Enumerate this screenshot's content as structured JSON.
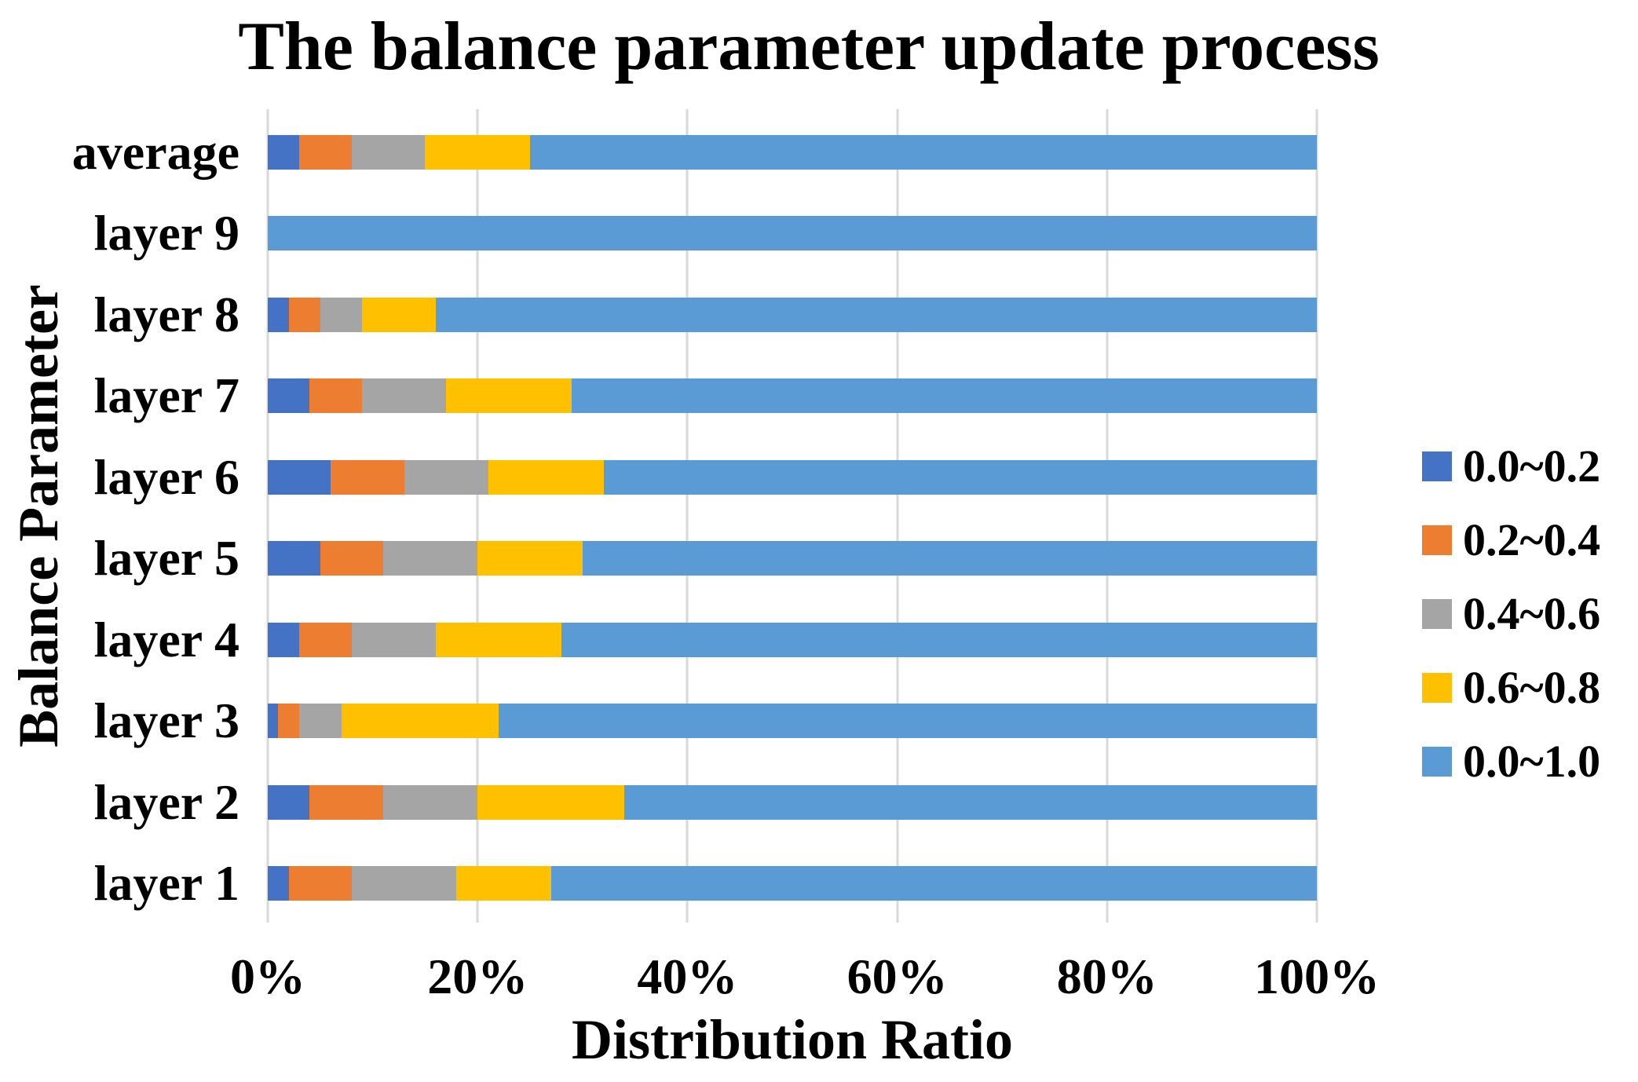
{
  "chart_data": {
    "type": "bar",
    "orientation": "horizontal-stacked",
    "title": "The balance parameter update process",
    "xlabel": "Distribution Ratio",
    "ylabel": "Balance Parameter",
    "x_ticks": [
      "0%",
      "20%",
      "40%",
      "60%",
      "80%",
      "100%"
    ],
    "xlim_percent": [
      0,
      100
    ],
    "grid": true,
    "gridline_color": "#D9D9D9",
    "legend_position": "right",
    "units": "percent of distribution",
    "categories_top_to_bottom": [
      "average",
      "layer 9",
      "layer 8",
      "layer 7",
      "layer 6",
      "layer 5",
      "layer 4",
      "layer 3",
      "layer 2",
      "layer 1"
    ],
    "series": [
      {
        "name": "0.0~0.2",
        "color": "#4472C4",
        "values": [
          3,
          0,
          2,
          4,
          6,
          5,
          3,
          1,
          4,
          2
        ]
      },
      {
        "name": "0.2~0.4",
        "color": "#ED7D31",
        "values": [
          5,
          0,
          3,
          5,
          7,
          6,
          5,
          2,
          7,
          6
        ]
      },
      {
        "name": "0.4~0.6",
        "color": "#A5A5A5",
        "values": [
          7,
          0,
          4,
          8,
          8,
          9,
          8,
          4,
          9,
          10
        ]
      },
      {
        "name": "0.6~0.8",
        "color": "#FFC000",
        "values": [
          10,
          0,
          7,
          12,
          11,
          10,
          12,
          15,
          14,
          9
        ]
      },
      {
        "name": "0.0~1.0",
        "color": "#5B9BD5",
        "values": [
          75,
          100,
          84,
          71,
          68,
          70,
          72,
          78,
          66,
          73
        ]
      }
    ]
  }
}
